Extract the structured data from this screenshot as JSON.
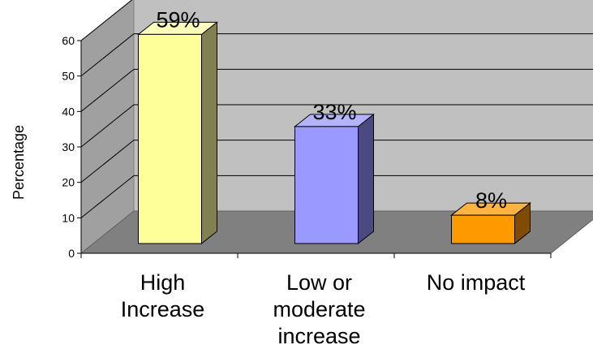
{
  "chart_data": {
    "type": "bar",
    "style": "3d-column",
    "categories": [
      "High Increase",
      "Low or moderate increase",
      "No impact"
    ],
    "category_lines": [
      [
        "High",
        "Increase"
      ],
      [
        "Low or",
        "moderate",
        "increase"
      ],
      [
        "No impact"
      ]
    ],
    "values": [
      59,
      33,
      8
    ],
    "data_labels": [
      "59%",
      "33%",
      "8%"
    ],
    "ylabel": "Percentage",
    "ylim": [
      0,
      60
    ],
    "yticks": [
      "0",
      "10",
      "20",
      "30",
      "40",
      "50",
      "60"
    ],
    "grid": true,
    "legend": "none",
    "colors": {
      "bars_front": [
        "#ffff99",
        "#9999ff",
        "#ff9900"
      ],
      "bars_side": [
        "#808050",
        "#4a4a80",
        "#7f4c00"
      ],
      "bars_top": [
        "#ffffbb",
        "#b3b3ff",
        "#ffb340"
      ],
      "back_wall": "#c0c0c0",
      "side_wall": "#a0a0a0",
      "floor": "#808080",
      "gridline": "#000000"
    }
  }
}
